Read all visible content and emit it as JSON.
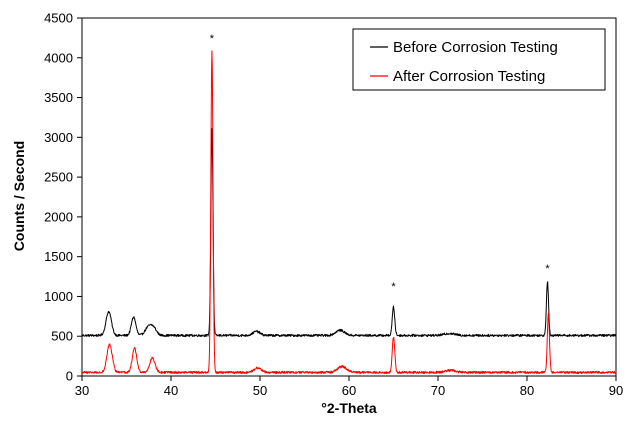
{
  "chart_data": {
    "type": "line",
    "title": "",
    "xlabel": "°2-Theta",
    "ylabel": "Counts / Second",
    "xlim": [
      30,
      90
    ],
    "ylim": [
      0,
      4500
    ],
    "xticks": [
      30,
      40,
      50,
      60,
      70,
      80,
      90
    ],
    "yticks": [
      0,
      500,
      1000,
      1500,
      2000,
      2500,
      3000,
      3500,
      4000,
      4500
    ],
    "grid": false,
    "legend_position": "top-right",
    "series": [
      {
        "name": "Before Corrosion Testing",
        "color": "#000000",
        "baseline": 510,
        "noise": 14,
        "peaks": [
          {
            "x": 33.0,
            "height": 300,
            "width": 0.3
          },
          {
            "x": 35.8,
            "height": 230,
            "width": 0.25
          },
          {
            "x": 37.4,
            "height": 90,
            "width": 0.35
          },
          {
            "x": 38.0,
            "height": 100,
            "width": 0.35
          },
          {
            "x": 44.6,
            "height": 2600,
            "width": 0.12
          },
          {
            "x": 49.6,
            "height": 50,
            "width": 0.4
          },
          {
            "x": 59.0,
            "height": 65,
            "width": 0.5
          },
          {
            "x": 65.0,
            "height": 355,
            "width": 0.14
          },
          {
            "x": 71.3,
            "height": 25,
            "width": 0.6
          },
          {
            "x": 82.3,
            "height": 680,
            "width": 0.12
          }
        ]
      },
      {
        "name": "After Corrosion Testing",
        "color": "#ff0000",
        "baseline": 45,
        "noise": 14,
        "peaks": [
          {
            "x": 33.1,
            "height": 350,
            "width": 0.3
          },
          {
            "x": 35.9,
            "height": 300,
            "width": 0.25
          },
          {
            "x": 37.9,
            "height": 180,
            "width": 0.3
          },
          {
            "x": 44.6,
            "height": 4050,
            "width": 0.12
          },
          {
            "x": 49.7,
            "height": 55,
            "width": 0.4
          },
          {
            "x": 59.2,
            "height": 75,
            "width": 0.5
          },
          {
            "x": 65.0,
            "height": 450,
            "width": 0.14
          },
          {
            "x": 71.4,
            "height": 25,
            "width": 0.6
          },
          {
            "x": 82.4,
            "height": 740,
            "width": 0.12
          }
        ]
      }
    ],
    "annotations": [
      {
        "text": "*",
        "x": 44.6,
        "y": 4200
      },
      {
        "text": "*",
        "x": 65.0,
        "y": 1080
      },
      {
        "text": "*",
        "x": 82.3,
        "y": 1310
      }
    ]
  }
}
